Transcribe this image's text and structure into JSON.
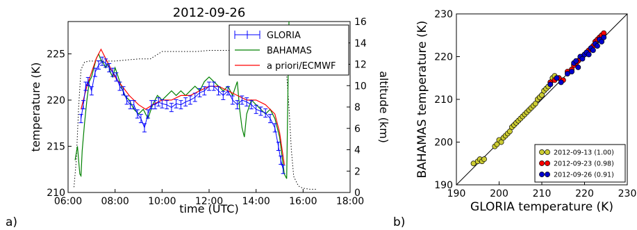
{
  "panel_labels": [
    "a)",
    "b)"
  ],
  "chart_data": [
    {
      "type": "line",
      "title": "2012-09-26",
      "xlabel": "time (UTC)",
      "ylabel": "temperature (K)",
      "y2label": "altitude (km)",
      "xlim": [
        6,
        18
      ],
      "ylim": [
        210,
        228.5
      ],
      "y2lim": [
        0,
        16
      ],
      "xticks": [
        "06:00",
        "08:00",
        "10:00",
        "12:00",
        "14:00",
        "16:00",
        "18:00"
      ],
      "yticks": [
        "210",
        "215",
        "220",
        "225"
      ],
      "y2ticks": [
        "0",
        "2",
        "4",
        "6",
        "8",
        "10",
        "12",
        "14",
        "16"
      ],
      "legend_position": "top-right",
      "series": [
        {
          "name": "GLORIA",
          "color": "#0000ff",
          "style": "errorbar",
          "x": [
            6.55,
            6.65,
            6.75,
            6.85,
            7.0,
            7.15,
            7.3,
            7.45,
            7.6,
            7.75,
            7.9,
            8.05,
            8.2,
            8.35,
            8.5,
            8.65,
            8.8,
            8.95,
            9.1,
            9.25,
            9.4,
            9.55,
            9.7,
            9.85,
            10.0,
            10.2,
            10.4,
            10.6,
            10.8,
            11.0,
            11.2,
            11.4,
            11.6,
            11.8,
            12.0,
            12.2,
            12.4,
            12.6,
            12.8,
            13.0,
            13.2,
            13.4,
            13.6,
            13.8,
            14.0,
            14.2,
            14.4,
            14.6,
            14.8,
            14.95,
            15.05,
            15.15
          ],
          "y": [
            218.0,
            219.5,
            221.5,
            222.0,
            221.0,
            223.0,
            223.8,
            224.2,
            224.0,
            223.5,
            223.0,
            222.5,
            221.5,
            221.0,
            220.0,
            219.5,
            219.5,
            218.5,
            218.0,
            217.0,
            218.5,
            219.5,
            219.5,
            219.8,
            219.6,
            219.5,
            219.2,
            219.6,
            219.5,
            219.8,
            220.0,
            220.3,
            220.8,
            221.0,
            221.5,
            221.5,
            221.0,
            220.5,
            221.0,
            220.0,
            219.5,
            220.0,
            219.8,
            219.5,
            219.0,
            218.8,
            218.6,
            218.0,
            217.0,
            215.0,
            213.5,
            212.5
          ]
        },
        {
          "name": "BAHAMAS",
          "color": "#008000",
          "style": "line",
          "x": [
            6.3,
            6.4,
            6.5,
            6.55,
            6.6,
            6.7,
            6.8,
            6.9,
            7.0,
            7.1,
            7.2,
            7.3,
            7.4,
            7.5,
            7.6,
            7.7,
            7.8,
            7.9,
            8.0,
            8.2,
            8.4,
            8.6,
            8.8,
            9.0,
            9.2,
            9.4,
            9.6,
            9.8,
            10.0,
            10.2,
            10.4,
            10.6,
            10.8,
            11.0,
            11.2,
            11.4,
            11.6,
            11.8,
            12.0,
            12.2,
            12.4,
            12.6,
            12.8,
            13.0,
            13.2,
            13.3,
            13.4,
            13.5,
            13.6,
            13.8,
            14.0,
            14.2,
            14.4,
            14.6,
            14.8,
            15.0,
            15.1,
            15.2,
            15.3,
            15.35,
            15.4
          ],
          "y": [
            213.5,
            215.0,
            212.0,
            211.8,
            214.5,
            217.5,
            220.0,
            222.0,
            222.5,
            223.5,
            224.5,
            225.0,
            224.3,
            224.0,
            223.5,
            224.0,
            223.0,
            222.5,
            223.5,
            222.0,
            220.5,
            220.0,
            219.0,
            218.5,
            219.0,
            218.0,
            219.5,
            220.5,
            220.0,
            220.5,
            221.0,
            220.5,
            221.0,
            220.5,
            221.0,
            221.5,
            221.0,
            222.0,
            222.5,
            222.0,
            221.5,
            221.0,
            221.5,
            220.5,
            222.0,
            219.0,
            217.0,
            216.0,
            218.5,
            220.0,
            219.5,
            219.0,
            218.5,
            219.0,
            218.0,
            216.0,
            214.0,
            212.0,
            211.5,
            220.0,
            228.5
          ]
        },
        {
          "name": "a priori/ECMWF",
          "color": "#ff0000",
          "style": "line",
          "x": [
            6.55,
            6.8,
            7.0,
            7.2,
            7.4,
            7.6,
            7.8,
            8.0,
            8.3,
            8.6,
            9.0,
            9.3,
            9.6,
            10.0,
            10.4,
            10.8,
            11.2,
            11.6,
            12.0,
            12.4,
            12.8,
            13.2,
            13.6,
            14.0,
            14.4,
            14.8,
            15.0,
            15.2
          ],
          "y": [
            219.0,
            221.5,
            223.0,
            224.5,
            225.5,
            224.5,
            223.5,
            222.5,
            221.5,
            220.5,
            219.5,
            219.0,
            219.5,
            220.0,
            220.0,
            220.5,
            220.5,
            221.0,
            221.5,
            221.5,
            221.0,
            220.5,
            220.0,
            220.0,
            219.5,
            218.5,
            216.5,
            213.0
          ]
        },
        {
          "name": "altitude",
          "color": "#000000",
          "style": "dotted",
          "axis": "right",
          "x": [
            6.25,
            6.35,
            6.45,
            6.55,
            6.7,
            6.9,
            7.2,
            7.6,
            8.0,
            8.5,
            9.0,
            9.5,
            10.0,
            10.5,
            11.0,
            11.5,
            12.0,
            13.0,
            14.0,
            14.5,
            15.0,
            15.2,
            15.3,
            15.4,
            15.5,
            15.6,
            15.8,
            16.0,
            16.3,
            16.6
          ],
          "y": [
            0.5,
            3.0,
            8.0,
            11.5,
            12.2,
            12.3,
            12.3,
            12.3,
            12.3,
            12.4,
            12.5,
            12.5,
            13.2,
            13.2,
            13.2,
            13.2,
            13.3,
            13.3,
            13.3,
            13.3,
            13.2,
            12.5,
            11.0,
            8.0,
            4.0,
            1.5,
            0.6,
            0.4,
            0.3,
            0.3
          ]
        }
      ]
    },
    {
      "type": "scatter",
      "xlabel": "GLORIA temperature (K)",
      "ylabel": "BAHAMAS temperature (K)",
      "xlim": [
        190,
        230
      ],
      "ylim": [
        190,
        230
      ],
      "xticks": [
        "190",
        "200",
        "210",
        "220",
        "230"
      ],
      "yticks": [
        "190",
        "200",
        "210",
        "220",
        "230"
      ],
      "diagonal": true,
      "legend_position": "bottom-right",
      "series": [
        {
          "name": "2012-09-13 (1.00)",
          "color": "#cccc33",
          "x": [
            194.0,
            195.0,
            195.5,
            196.0,
            196.5,
            199.0,
            199.5,
            200.0,
            200.5,
            201.0,
            201.5,
            202.0,
            202.5,
            203.0,
            203.5,
            204.0,
            204.5,
            205.0,
            205.5,
            206.0,
            206.5,
            207.0,
            207.5,
            208.0,
            208.5,
            209.0,
            209.5,
            210.0,
            210.5,
            211.0,
            211.5,
            212.0,
            212.5,
            213.0
          ],
          "y": [
            195.0,
            195.5,
            196.0,
            195.5,
            196.0,
            199.0,
            199.5,
            200.5,
            200.0,
            201.0,
            201.5,
            202.0,
            202.5,
            203.5,
            204.0,
            204.5,
            205.0,
            205.5,
            206.0,
            206.5,
            207.0,
            207.5,
            208.0,
            208.5,
            209.0,
            210.0,
            210.5,
            211.0,
            212.0,
            212.5,
            213.0,
            214.0,
            215.0,
            215.5
          ]
        },
        {
          "name": "2012-09-23 (0.98)",
          "color": "#ff0000",
          "x": [
            212.0,
            213.0,
            214.0,
            215.0,
            216.0,
            217.0,
            217.5,
            218.0,
            218.5,
            219.0,
            219.5,
            220.0,
            220.5,
            221.0,
            221.5,
            222.0,
            222.5,
            223.0,
            223.5,
            224.0,
            224.5
          ],
          "y": [
            214.0,
            214.5,
            215.0,
            214.5,
            216.5,
            217.0,
            218.0,
            218.5,
            219.0,
            219.5,
            220.0,
            220.5,
            221.0,
            221.5,
            222.0,
            222.5,
            223.5,
            224.0,
            224.5,
            225.0,
            225.5
          ]
        },
        {
          "name": "2012-09-26 (0.91)",
          "color": "#0000cc",
          "x": [
            212.0,
            213.5,
            214.5,
            216.0,
            217.0,
            217.5,
            218.0,
            218.5,
            219.0,
            219.5,
            220.0,
            220.5,
            221.0,
            221.5,
            222.0,
            222.5,
            223.0,
            223.5,
            224.0,
            224.5
          ],
          "y": [
            213.5,
            215.0,
            214.0,
            216.0,
            216.5,
            218.5,
            219.0,
            217.5,
            220.0,
            219.5,
            220.5,
            221.0,
            220.5,
            222.0,
            221.5,
            223.0,
            222.5,
            224.0,
            223.5,
            224.5
          ]
        }
      ]
    }
  ]
}
